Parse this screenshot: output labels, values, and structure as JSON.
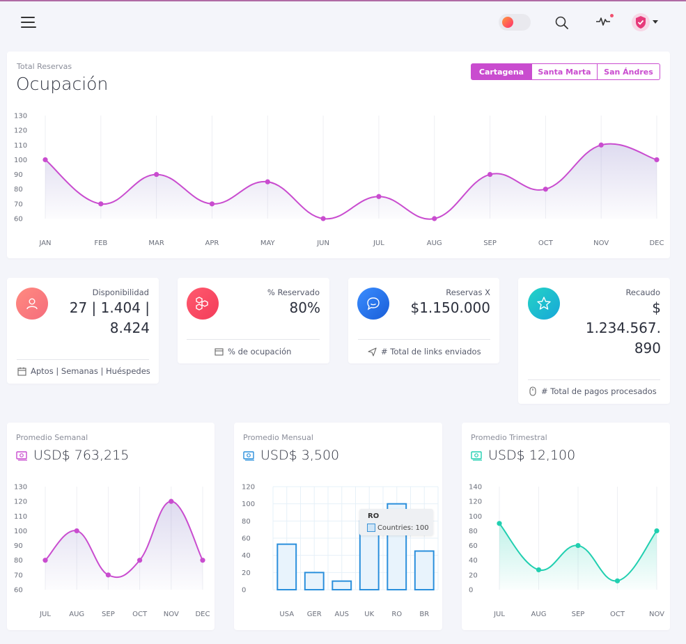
{
  "header": {
    "menu_icon": "hamburger-menu-icon",
    "theme_toggle_icon": "theme-toggle",
    "search_icon": "search-icon",
    "activity_icon": "activity-pulse-icon",
    "profile_icon": "shield-check-icon"
  },
  "main": {
    "subtitle": "Total Reservas",
    "title": "Ocupación",
    "tabs": [
      {
        "label": "Cartagena",
        "active": true
      },
      {
        "label": "Santa Marta",
        "active": false
      },
      {
        "label": "San Ándres",
        "active": false
      }
    ],
    "accent": "#c94ccf"
  },
  "stats": [
    {
      "label": "Disponibilidad",
      "value_lines": [
        "27 | 1.404 |",
        "8.424"
      ],
      "footer": "Aptos | Semanas | Huéspedes",
      "icon": "user-icon",
      "footer_icon": "calendar-icon",
      "color": "#f56d7c"
    },
    {
      "label": "% Reservado",
      "value_lines": [
        "80%"
      ],
      "footer": "% de ocupación",
      "icon": "hexagons-icon",
      "footer_icon": "card-icon",
      "color": "#f33c5a"
    },
    {
      "label": "Reservas X",
      "value_lines": [
        "$1.150.000"
      ],
      "footer": "# Total de links enviados",
      "icon": "chat-icon",
      "footer_icon": "send-icon",
      "color": "#1a73e8"
    },
    {
      "label": "Recaudo",
      "value_lines": [
        "$",
        "1.234.567.",
        "890"
      ],
      "footer": "# Total de pagos procesados",
      "icon": "star-icon",
      "footer_icon": "mouse-icon",
      "color": "#17b6d0"
    }
  ],
  "averages": [
    {
      "subtitle": "Promedio Semanal",
      "amount": "USD$ 763,215",
      "icon": "money-icon",
      "icon_color": "#c94ccf"
    },
    {
      "subtitle": "Promedio Mensual",
      "amount": "USD$ 3,500",
      "icon": "money-icon",
      "icon_color": "#2a8fdc"
    },
    {
      "subtitle": "Promedio Trimestral",
      "amount": "USD$ 12,100",
      "icon": "money-icon",
      "icon_color": "#21cfb0"
    }
  ],
  "tooltip": {
    "title": "RO",
    "text": "Countries: 100"
  },
  "chart_data": [
    {
      "type": "area",
      "categories": [
        "JAN",
        "FEB",
        "MAR",
        "APR",
        "MAY",
        "JUN",
        "JUL",
        "AUG",
        "SEP",
        "OCT",
        "NOV",
        "DEC"
      ],
      "values": [
        100,
        70,
        90,
        70,
        85,
        60,
        75,
        60,
        90,
        80,
        110,
        100
      ],
      "ylim": [
        60,
        130
      ],
      "yticks": [
        60,
        70,
        80,
        90,
        100,
        110,
        120,
        130
      ],
      "color": "#c94ccf"
    },
    {
      "type": "area",
      "categories": [
        "JUL",
        "AUG",
        "SEP",
        "OCT",
        "NOV",
        "DEC"
      ],
      "values": [
        80,
        100,
        70,
        80,
        120,
        80
      ],
      "ylim": [
        60,
        130
      ],
      "yticks": [
        60,
        70,
        80,
        90,
        100,
        110,
        120,
        130
      ],
      "color": "#c94ccf"
    },
    {
      "type": "bar",
      "categories": [
        "USA",
        "GER",
        "AUS",
        "UK",
        "RO",
        "BR"
      ],
      "values": [
        53,
        20,
        10,
        80,
        100,
        45
      ],
      "ylim": [
        0,
        120
      ],
      "yticks": [
        0,
        20,
        40,
        60,
        80,
        100,
        120
      ],
      "grid": true,
      "color": "#2a8fdc"
    },
    {
      "type": "area",
      "categories": [
        "JUL",
        "AUG",
        "SEP",
        "OCT",
        "NOV"
      ],
      "values": [
        90,
        27,
        60,
        12,
        80
      ],
      "ylim": [
        0,
        140
      ],
      "yticks": [
        0,
        20,
        40,
        60,
        80,
        100,
        120,
        140
      ],
      "color": "#21cfb0"
    }
  ]
}
